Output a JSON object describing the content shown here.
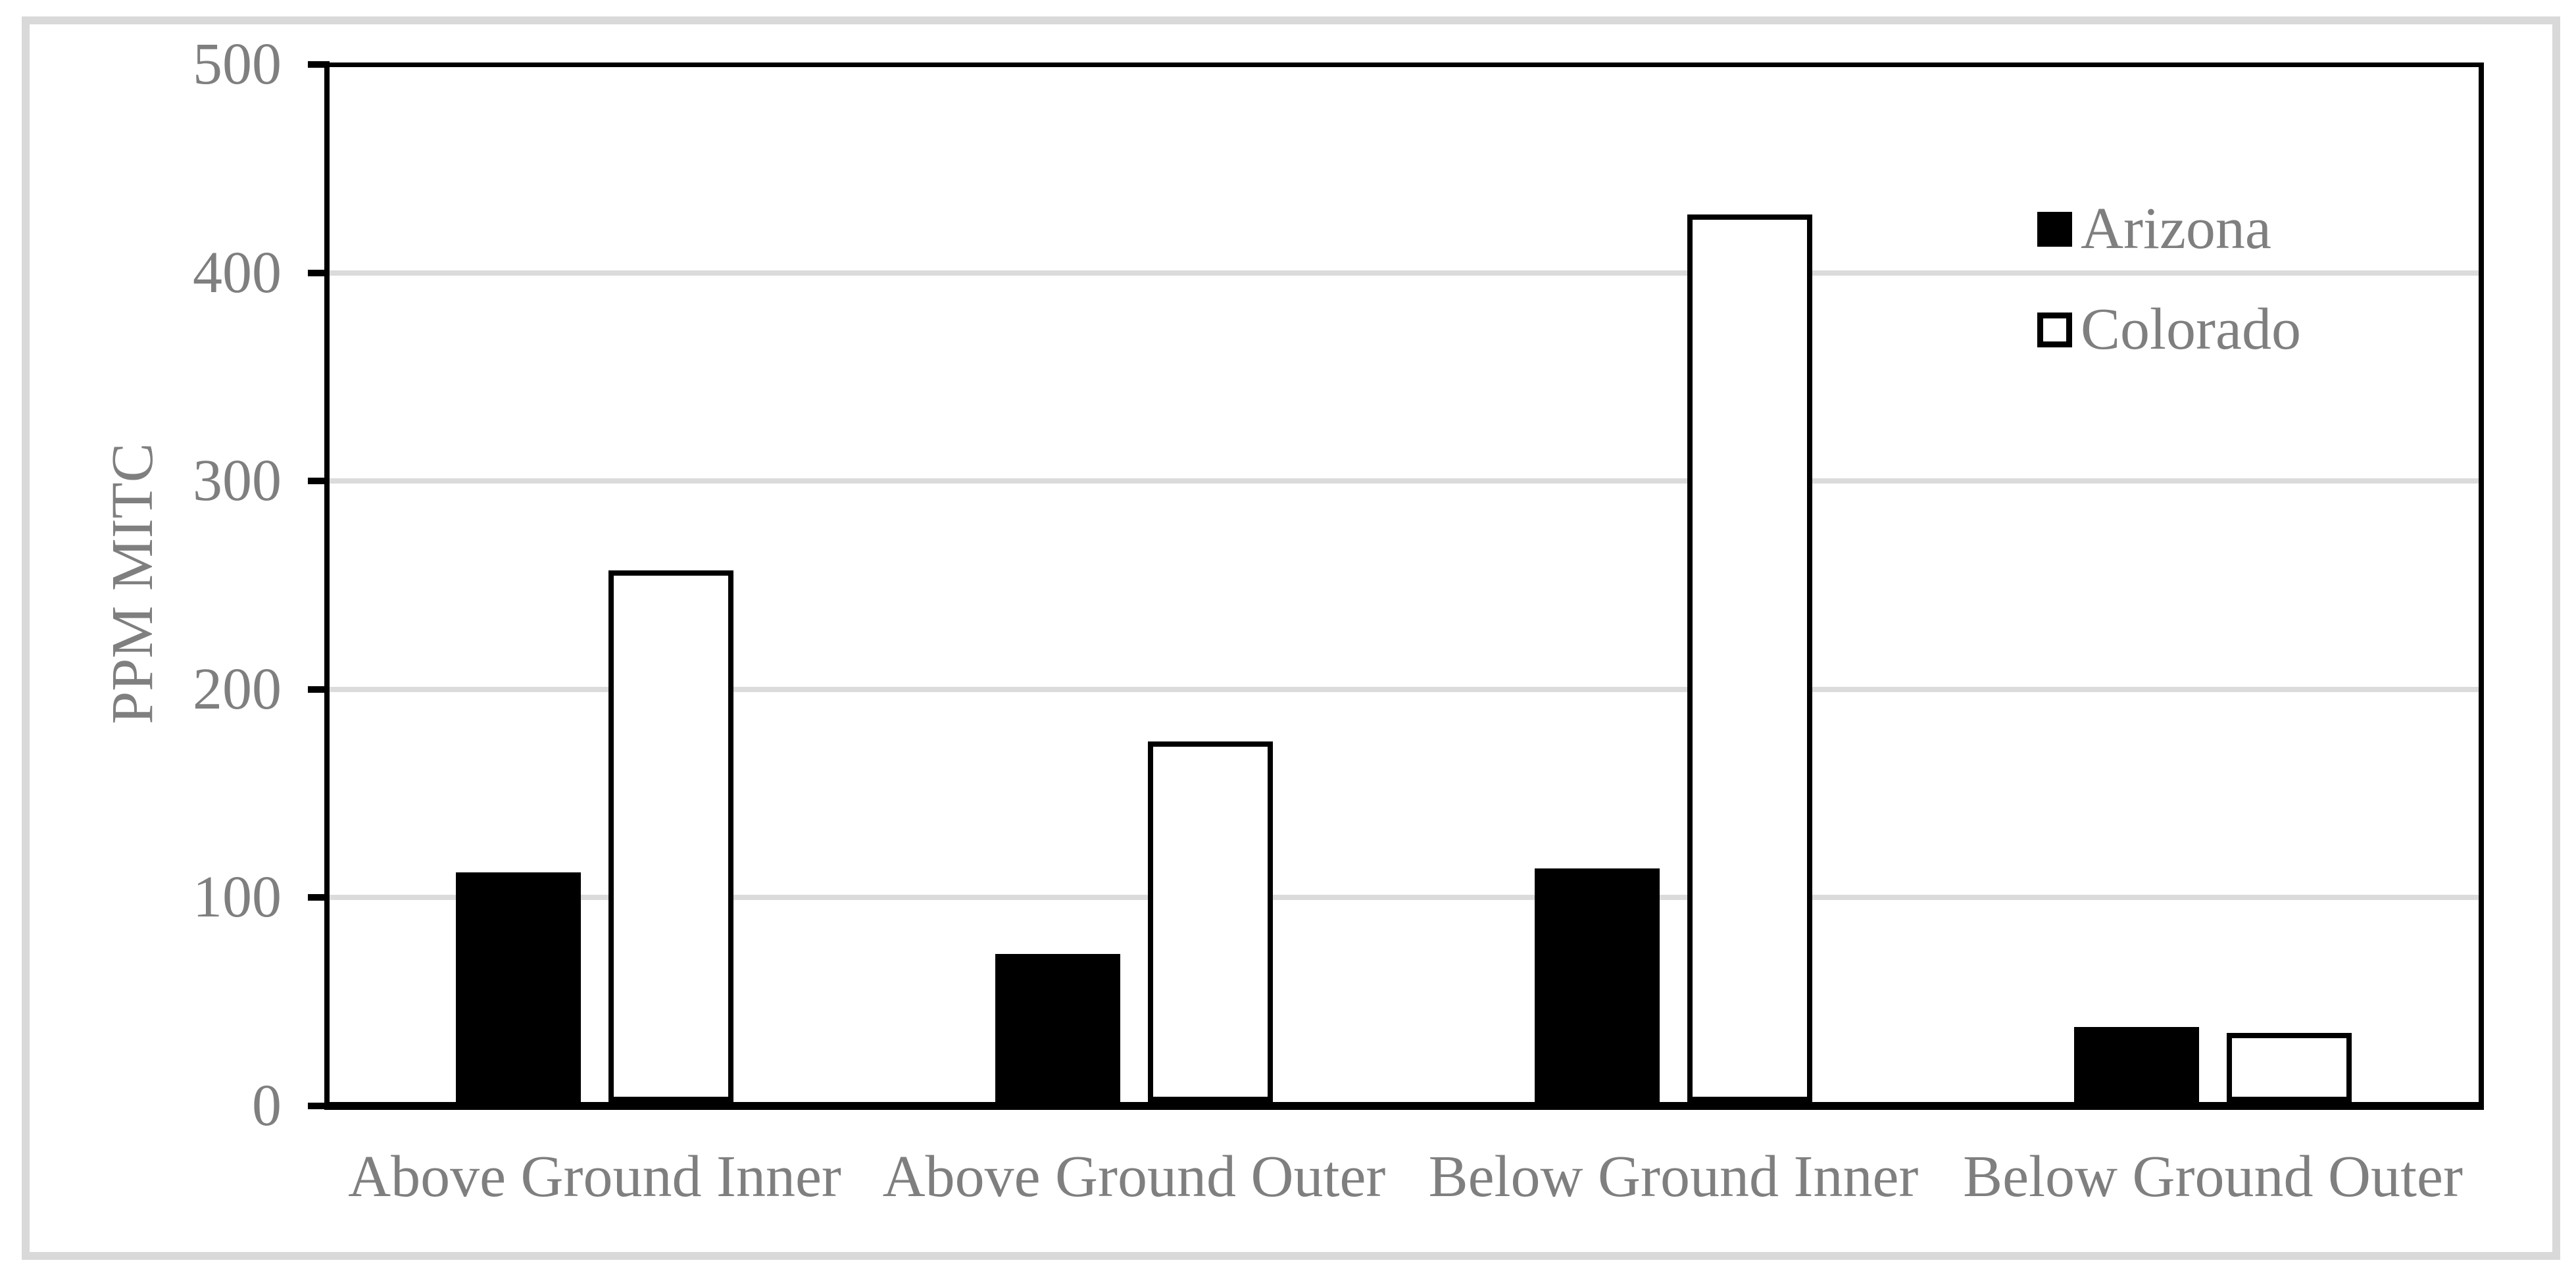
{
  "chart_data": {
    "type": "bar",
    "title": "",
    "categories": [
      "Above Ground Inner",
      "Above Ground Outer",
      "Below Ground Inner",
      "Below Ground Outer"
    ],
    "series": [
      {
        "name": "Arizona",
        "values": [
          112,
          73,
          114,
          38
        ],
        "fill": "#000000",
        "stroke": "#000000"
      },
      {
        "name": "Colorado",
        "values": [
          257,
          175,
          428,
          35
        ],
        "fill": "#ffffff",
        "stroke": "#000000"
      }
    ],
    "xlabel": "",
    "ylabel": "PPM MITC",
    "yticks": [
      0,
      100,
      200,
      300,
      400,
      500
    ],
    "ylim": [
      0,
      500
    ],
    "grid": "horizontal-gridlines-at-each-100",
    "legend_position": "upper-right-inside"
  },
  "colors": {
    "background": "#ffffff",
    "text": "#7f7f7f",
    "gridline": "#dbdbdb",
    "outer_frame": "#d9d9d9",
    "axis": "#000000",
    "arizona_bar": "#000000",
    "colorado_bar_fill": "#ffffff",
    "colorado_bar_stroke": "#000000"
  }
}
